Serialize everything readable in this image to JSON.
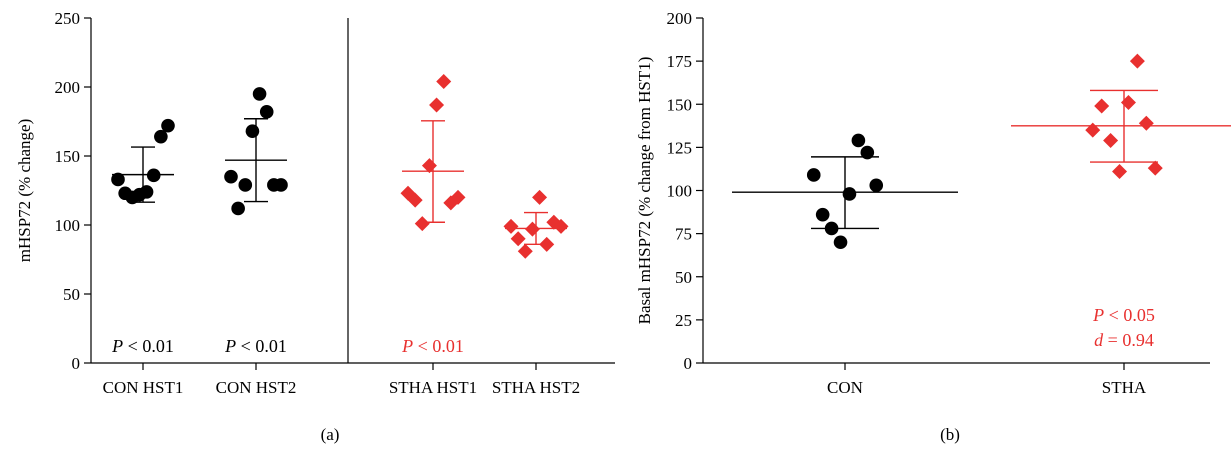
{
  "colors": {
    "black": "#000000",
    "red": "#e8302f"
  },
  "chart_data": [
    {
      "type": "scatter",
      "panel_label": "(a)",
      "ylabel": "mHSP72 (% change)",
      "ylim": [
        0,
        250
      ],
      "yticks": [
        "0",
        "50",
        "100",
        "150",
        "200",
        "250"
      ],
      "categories": [
        "CON HST1",
        "CON HST2",
        "STHA HST1",
        "STHA HST2"
      ],
      "groups": [
        {
          "category": "CON HST1",
          "color": "#000000",
          "marker": "circle",
          "values": [
            133,
            123,
            120,
            122,
            124,
            136,
            164,
            172
          ],
          "mean": 136.5,
          "sd": [
            116.5,
            156.5
          ]
        },
        {
          "category": "CON HST2",
          "color": "#000000",
          "marker": "circle",
          "values": [
            135,
            112,
            129,
            168,
            195,
            182,
            129,
            129
          ],
          "mean": 147,
          "sd": [
            117,
            177
          ]
        },
        {
          "category": "STHA HST1",
          "color": "#e8302f",
          "marker": "diamond",
          "values": [
            123,
            118,
            101,
            143,
            187,
            204,
            116,
            120
          ],
          "mean": 139,
          "sd": [
            102,
            175.5
          ]
        },
        {
          "category": "STHA HST2",
          "color": "#e8302f",
          "marker": "diamond",
          "values": [
            99,
            90,
            81,
            97,
            120,
            86,
            102,
            99
          ],
          "mean": 97.5,
          "sd": [
            86,
            109
          ]
        }
      ],
      "annotations": [
        {
          "group": "CON HST1",
          "prefix": "P",
          "text": " < 0.01",
          "color": "#000000"
        },
        {
          "group": "CON HST2",
          "prefix": "P",
          "text": " < 0.01",
          "color": "#000000"
        },
        {
          "group": "STHA HST1",
          "prefix": "P",
          "text": " < 0.01",
          "color": "#e8302f"
        }
      ],
      "divider": true
    },
    {
      "type": "scatter",
      "panel_label": "(b)",
      "ylabel": "Basal mHSP72 (% change from HST1)",
      "ylim": [
        0,
        200
      ],
      "yticks": [
        "0",
        "25",
        "50",
        "75",
        "100",
        "125",
        "150",
        "175",
        "200"
      ],
      "categories": [
        "CON",
        "STHA"
      ],
      "groups": [
        {
          "category": "CON",
          "color": "#000000",
          "marker": "circle",
          "values": [
            109,
            86,
            78,
            70,
            98,
            129,
            122,
            103
          ],
          "mean": 99,
          "sd": [
            78,
            119.5
          ]
        },
        {
          "category": "STHA",
          "color": "#e8302f",
          "marker": "diamond",
          "values": [
            135,
            149,
            129,
            111,
            151,
            175,
            139,
            113
          ],
          "mean": 137.5,
          "sd": [
            116.5,
            158
          ]
        }
      ],
      "annotations": [
        {
          "group": "STHA",
          "prefix": "P",
          "text": " < 0.05",
          "color": "#e8302f"
        },
        {
          "group": "STHA",
          "prefix": "d",
          "text": " = 0.94",
          "color": "#e8302f"
        }
      ]
    }
  ]
}
